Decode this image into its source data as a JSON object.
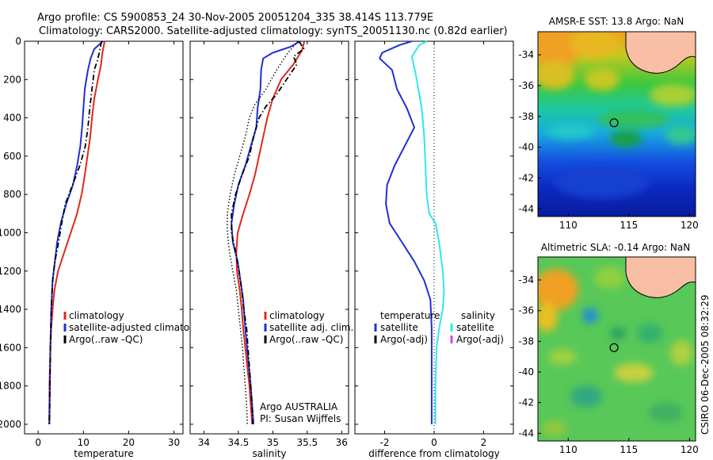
{
  "header": {
    "line1": "Argo profile: CS 5900853_24 30-Nov-2005 20051204_335 38.414S 113.779E",
    "line2": "Climatology: CARS2000. Satellite-adjusted climatology: synTS_20051130.nc (0.82d earlier)"
  },
  "side_label": "CSIRO 06-Dec-2005 08:32:29",
  "colors": {
    "climatology": "#dd2a1a",
    "satellite": "#1f2fd6",
    "argo": "#000000",
    "sal_satellite": "#2ee8ee",
    "sal_argo_adj": "#e040e0",
    "land": "#f9bfa4"
  },
  "chart_data": [
    {
      "type": "line",
      "panel": "temperature",
      "xlabel": "temperature",
      "ylabel": "",
      "xlim": [
        -3,
        32
      ],
      "ylim": [
        2050,
        0
      ],
      "xticks": [
        0,
        10,
        20,
        30
      ],
      "yticks": [
        0,
        200,
        400,
        600,
        800,
        1000,
        1200,
        1400,
        1600,
        1800,
        2000
      ],
      "legend": {
        "placement": "center-right",
        "entries": [
          "climatology",
          "satellite-adjusted climatology",
          "Argo(..raw -QC)"
        ]
      },
      "series": [
        {
          "name": "climatology",
          "style": "solid",
          "color": "#dd2a1a",
          "points": [
            [
              14.7,
              0
            ],
            [
              14.2,
              60
            ],
            [
              13.9,
              120
            ],
            [
              13.2,
              200
            ],
            [
              12.4,
              300
            ],
            [
              11.9,
              400
            ],
            [
              11.5,
              500
            ],
            [
              10.9,
              600
            ],
            [
              10.3,
              700
            ],
            [
              9.6,
              800
            ],
            [
              8.6,
              900
            ],
            [
              7.2,
              1000
            ],
            [
              5.8,
              1100
            ],
            [
              4.4,
              1200
            ],
            [
              3.6,
              1300
            ],
            [
              3.2,
              1400
            ],
            [
              2.9,
              1500
            ],
            [
              2.7,
              1600
            ],
            [
              2.6,
              1700
            ],
            [
              2.5,
              1800
            ],
            [
              2.5,
              1900
            ],
            [
              2.4,
              2000
            ]
          ]
        },
        {
          "name": "satellite-adjusted climatology",
          "style": "solid",
          "color": "#1f2fd6",
          "points": [
            [
              14.3,
              0
            ],
            [
              12.4,
              40
            ],
            [
              11.6,
              90
            ],
            [
              11.0,
              150
            ],
            [
              10.3,
              250
            ],
            [
              10.0,
              350
            ],
            [
              9.7,
              450
            ],
            [
              9.3,
              550
            ],
            [
              8.6,
              650
            ],
            [
              7.7,
              750
            ],
            [
              6.2,
              850
            ],
            [
              5.0,
              950
            ],
            [
              4.2,
              1050
            ],
            [
              3.7,
              1150
            ],
            [
              3.2,
              1250
            ],
            [
              2.9,
              1400
            ],
            [
              2.7,
              1600
            ],
            [
              2.6,
              1800
            ],
            [
              2.5,
              2000
            ]
          ]
        },
        {
          "name": "Argo(..raw -QC)",
          "style": "dashdot",
          "color": "#000000",
          "points": [
            [
              14.0,
              0
            ],
            [
              13.6,
              50
            ],
            [
              13.1,
              100
            ],
            [
              12.4,
              150
            ],
            [
              11.9,
              250
            ],
            [
              11.4,
              350
            ],
            [
              11.0,
              450
            ],
            [
              10.4,
              550
            ],
            [
              9.2,
              650
            ],
            [
              7.6,
              750
            ],
            [
              6.0,
              850
            ],
            [
              5.2,
              950
            ],
            [
              4.5,
              1050
            ],
            [
              3.7,
              1150
            ],
            [
              3.2,
              1250
            ],
            [
              2.9,
              1400
            ],
            [
              2.7,
              1600
            ],
            [
              2.6,
              1800
            ],
            [
              2.5,
              2000
            ]
          ]
        }
      ]
    },
    {
      "type": "line",
      "panel": "salinity",
      "xlabel": "salinity",
      "ylabel": "",
      "xlim": [
        33.8,
        36.1
      ],
      "ylim": [
        2050,
        0
      ],
      "xticks": [
        34,
        34.5,
        35,
        35.5,
        36
      ],
      "xticklabels": [
        "34",
        "34.5",
        "35",
        "35.5",
        "36"
      ],
      "legend": {
        "placement": "center-right",
        "entries": [
          "climatology",
          "satellite adj. clim.",
          "Argo(..raw -QC)"
        ]
      },
      "annotation": [
        "Argo AUSTRALIA",
        "PI: Susan Wijffels"
      ],
      "series": [
        {
          "name": "climatology",
          "style": "solid",
          "color": "#dd2a1a",
          "points": [
            [
              35.46,
              0
            ],
            [
              35.42,
              50
            ],
            [
              35.3,
              120
            ],
            [
              35.12,
              200
            ],
            [
              35.0,
              300
            ],
            [
              34.92,
              400
            ],
            [
              34.86,
              500
            ],
            [
              34.8,
              600
            ],
            [
              34.74,
              700
            ],
            [
              34.66,
              800
            ],
            [
              34.57,
              900
            ],
            [
              34.49,
              1000
            ],
            [
              34.47,
              1100
            ],
            [
              34.48,
              1200
            ],
            [
              34.52,
              1300
            ],
            [
              34.55,
              1400
            ],
            [
              34.57,
              1500
            ],
            [
              34.6,
              1600
            ],
            [
              34.63,
              1700
            ],
            [
              34.66,
              1800
            ],
            [
              34.68,
              1900
            ],
            [
              34.7,
              2000
            ]
          ]
        },
        {
          "name": "satellite adj. clim.",
          "style": "solid",
          "color": "#1f2fd6",
          "points": [
            [
              35.4,
              0
            ],
            [
              35.25,
              30
            ],
            [
              35.0,
              60
            ],
            [
              34.86,
              90
            ],
            [
              34.83,
              150
            ],
            [
              34.82,
              250
            ],
            [
              34.78,
              350
            ],
            [
              34.76,
              450
            ],
            [
              34.68,
              550
            ],
            [
              34.6,
              650
            ],
            [
              34.5,
              750
            ],
            [
              34.44,
              850
            ],
            [
              34.4,
              950
            ],
            [
              34.42,
              1050
            ],
            [
              34.49,
              1150
            ],
            [
              34.53,
              1250
            ],
            [
              34.57,
              1350
            ],
            [
              34.6,
              1500
            ],
            [
              34.64,
              1650
            ],
            [
              34.68,
              1800
            ],
            [
              34.72,
              2000
            ]
          ]
        },
        {
          "name": "Argo(..raw -QC)",
          "style": "dashdot",
          "color": "#000000",
          "points": [
            [
              35.38,
              0
            ],
            [
              35.45,
              40
            ],
            [
              35.3,
              80
            ],
            [
              35.35,
              120
            ],
            [
              35.2,
              200
            ],
            [
              35.05,
              280
            ],
            [
              34.9,
              340
            ],
            [
              34.8,
              400
            ],
            [
              34.72,
              500
            ],
            [
              34.66,
              600
            ],
            [
              34.55,
              700
            ],
            [
              34.46,
              800
            ],
            [
              34.4,
              900
            ],
            [
              34.4,
              1000
            ],
            [
              34.46,
              1100
            ],
            [
              34.51,
              1200
            ],
            [
              34.55,
              1300
            ],
            [
              34.58,
              1400
            ],
            [
              34.62,
              1500
            ],
            [
              34.64,
              1600
            ],
            [
              34.66,
              1700
            ],
            [
              34.68,
              1800
            ],
            [
              34.7,
              1900
            ],
            [
              34.71,
              2000
            ]
          ]
        },
        {
          "name": "",
          "style": "dotted",
          "color": "#000000",
          "points": [
            [
              35.36,
              0
            ],
            [
              35.2,
              70
            ],
            [
              35.04,
              160
            ],
            [
              34.9,
              250
            ],
            [
              34.74,
              330
            ],
            [
              34.66,
              400
            ],
            [
              34.6,
              500
            ],
            [
              34.52,
              600
            ],
            [
              34.44,
              700
            ],
            [
              34.38,
              800
            ],
            [
              34.34,
              900
            ],
            [
              34.34,
              1000
            ],
            [
              34.37,
              1100
            ],
            [
              34.42,
              1200
            ],
            [
              34.47,
              1300
            ],
            [
              34.5,
              1400
            ],
            [
              34.53,
              1500
            ],
            [
              34.56,
              1600
            ],
            [
              34.58,
              1700
            ],
            [
              34.6,
              1800
            ],
            [
              34.62,
              1900
            ],
            [
              34.63,
              2000
            ]
          ]
        }
      ]
    },
    {
      "type": "line",
      "panel": "difference",
      "xlabel": "difference from climatology",
      "ylabel": "",
      "xlim": [
        -3.2,
        3.2
      ],
      "ylim": [
        2050,
        0
      ],
      "xticks": [
        -2,
        0,
        2
      ],
      "zero_line": "dotted",
      "legend": {
        "placement": "center",
        "groups": [
          {
            "title": "temperature",
            "entries": [
              "satellite",
              "Argo(-adj)"
            ]
          },
          {
            "title": "salinity",
            "entries": [
              "satellite",
              "Argo(-adj)"
            ]
          }
        ]
      },
      "series": [
        {
          "name": "temperature satellite",
          "style": "solid",
          "color": "#1f2fd6",
          "points": [
            [
              -0.9,
              0
            ],
            [
              -1.4,
              20
            ],
            [
              -2.1,
              60
            ],
            [
              -2.2,
              90
            ],
            [
              -1.7,
              150
            ],
            [
              -1.5,
              250
            ],
            [
              -1.1,
              350
            ],
            [
              -0.8,
              450
            ],
            [
              -1.2,
              550
            ],
            [
              -1.6,
              650
            ],
            [
              -1.9,
              750
            ],
            [
              -1.95,
              850
            ],
            [
              -1.8,
              950
            ],
            [
              -1.3,
              1050
            ],
            [
              -0.8,
              1150
            ],
            [
              -0.4,
              1250
            ],
            [
              -0.15,
              1350
            ],
            [
              -0.1,
              1500
            ],
            [
              -0.1,
              1700
            ],
            [
              -0.1,
              1900
            ],
            [
              -0.1,
              2000
            ]
          ]
        },
        {
          "name": "salinity satellite",
          "style": "solid",
          "color": "#2ee8ee",
          "points": [
            [
              -0.3,
              0
            ],
            [
              -0.6,
              20
            ],
            [
              -0.9,
              80
            ],
            [
              -0.7,
              200
            ],
            [
              -0.5,
              350
            ],
            [
              -0.4,
              500
            ],
            [
              -0.35,
              650
            ],
            [
              -0.3,
              800
            ],
            [
              -0.2,
              900
            ],
            [
              0.05,
              950
            ],
            [
              0.2,
              1050
            ],
            [
              0.35,
              1200
            ],
            [
              0.4,
              1300
            ],
            [
              0.35,
              1400
            ],
            [
              0.2,
              1500
            ],
            [
              0.1,
              1600
            ],
            [
              0.05,
              1800
            ],
            [
              0.05,
              2000
            ]
          ]
        }
      ]
    }
  ],
  "maps": [
    {
      "title": "AMSR-E SST: 13.8 Argo: NaN",
      "xticks": [
        "110",
        "115",
        "120"
      ],
      "yticks": [
        "-34",
        "-36",
        "-38",
        "-40",
        "-42",
        "-44"
      ],
      "xlim": [
        107.5,
        120.5
      ],
      "ylim": [
        -44.5,
        -32.5
      ],
      "marker": [
        113.78,
        -38.41
      ]
    },
    {
      "title": "Altimetric SLA: -0.14 Argo: NaN",
      "xticks": [
        "110",
        "115",
        "120"
      ],
      "yticks": [
        "-34",
        "-36",
        "-38",
        "-40",
        "-42",
        "-44"
      ],
      "xlim": [
        107.5,
        120.5
      ],
      "ylim": [
        -44.5,
        -32.5
      ],
      "marker": [
        113.78,
        -38.41
      ]
    }
  ]
}
